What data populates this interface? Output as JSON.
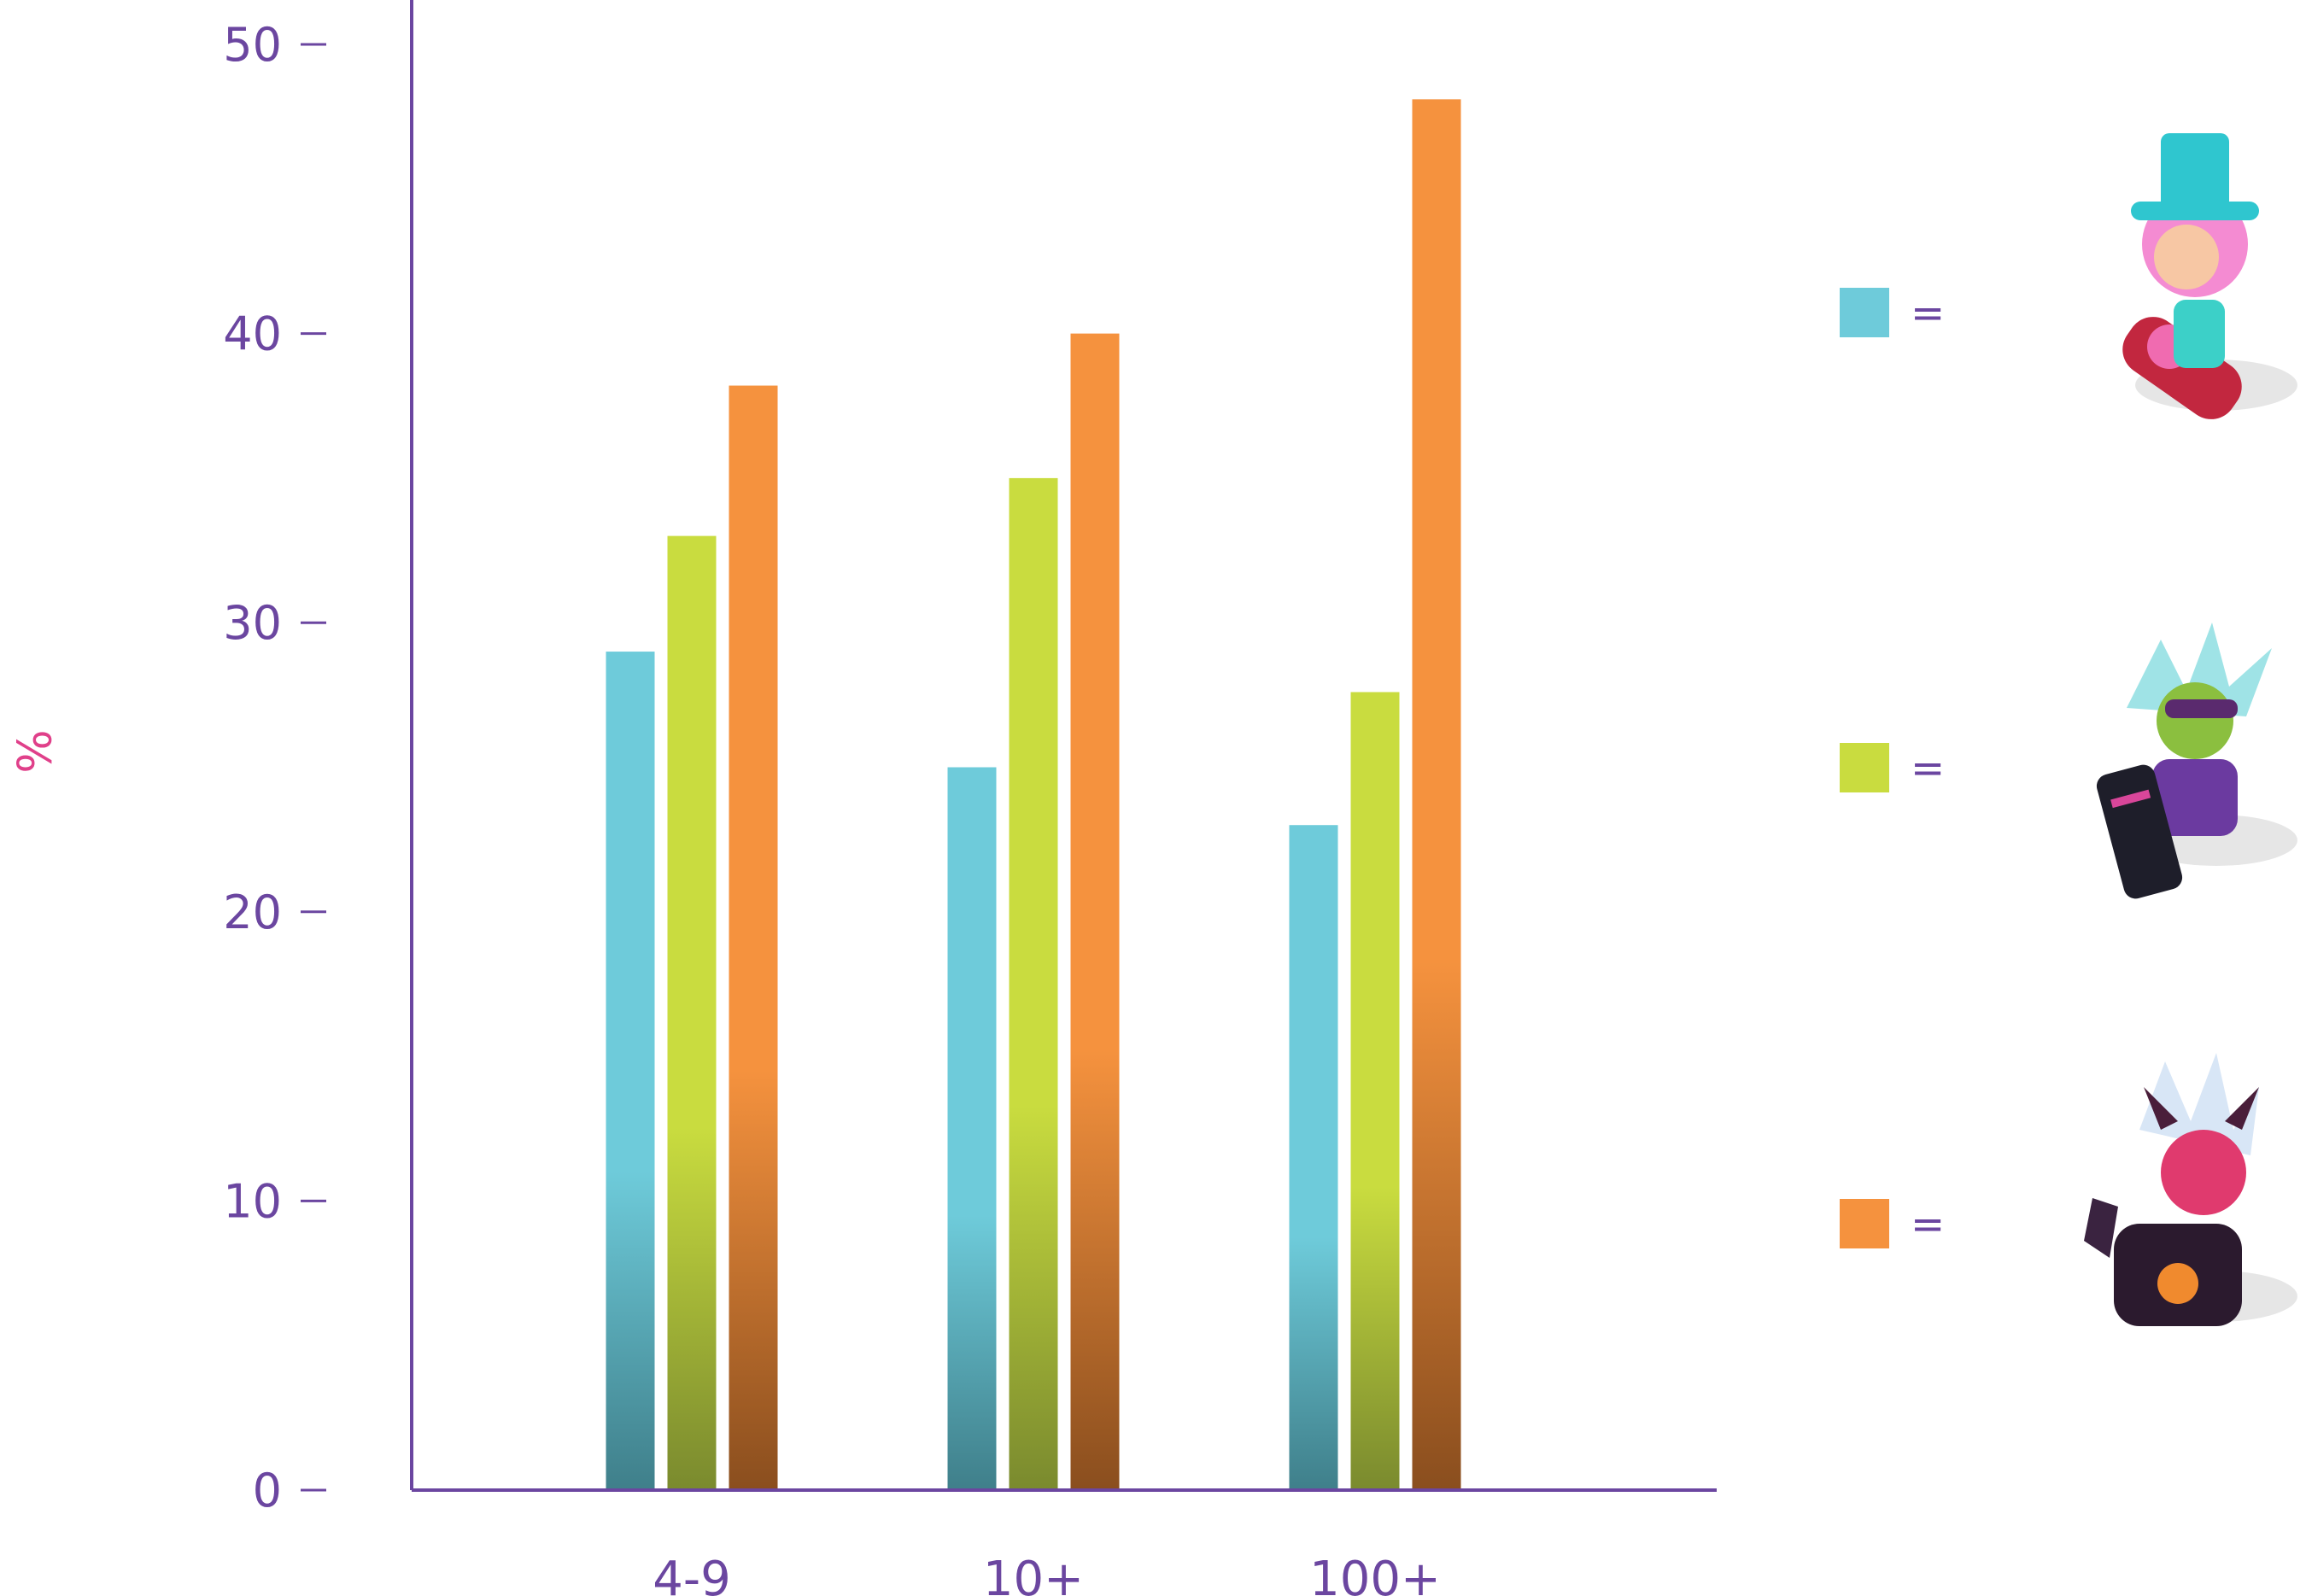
{
  "chart_data": {
    "type": "bar",
    "categories": [
      "4-9",
      "10+",
      "100+"
    ],
    "series": [
      {
        "values": [
          29,
          25,
          23
        ],
        "color": "#6ecbda",
        "icon": "champion-icon-candy-gunner"
      },
      {
        "values": [
          33,
          35,
          27.6
        ],
        "color": "#c9dc3f",
        "icon": "champion-icon-goggles-gunner"
      },
      {
        "values": [
          38.2,
          40,
          48.1
        ],
        "color": "#f5923e",
        "icon": "champion-icon-demon-gunner"
      }
    ],
    "ylabel": "%",
    "ylim": [
      0,
      50
    ],
    "yticks": [
      0,
      10,
      20,
      30,
      40,
      50
    ],
    "legend_equals": "=",
    "legend_placement": "right",
    "grid": false,
    "colors": {
      "axis": "#6b46a0",
      "tick_text": "#6b46a0",
      "ylabel": "#e0408a"
    }
  }
}
